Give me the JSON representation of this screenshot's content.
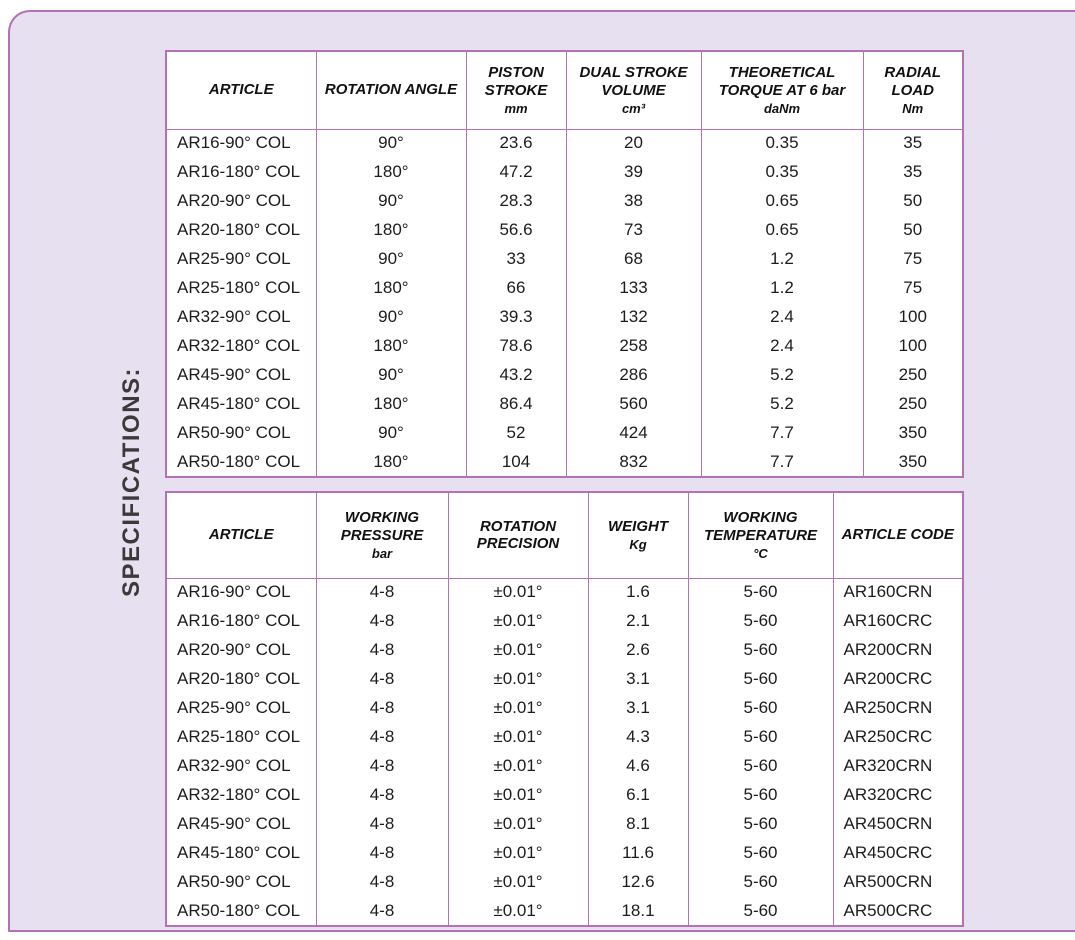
{
  "page": {
    "section_title": "SPECIFICATIONS:"
  },
  "colors": {
    "panel_bg": "#e7e0f0",
    "table_border": "#b472b4",
    "table_bg": "#ffffff",
    "header_text": "#111111",
    "cell_text": "#1c1c1c",
    "side_label_color": "#3a3a3a"
  },
  "tables": [
    {
      "columns": [
        {
          "title": "ARTICLE",
          "unit": ""
        },
        {
          "title": "ROTATION ANGLE",
          "unit": ""
        },
        {
          "title": "PISTON STROKE",
          "unit": "mm"
        },
        {
          "title": "DUAL STROKE VOLUME",
          "unit": "cm³"
        },
        {
          "title": "THEORETICAL TORQUE AT 6 bar",
          "unit": "daNm"
        },
        {
          "title": "RADIAL LOAD",
          "unit": "Nm"
        }
      ],
      "rows": [
        [
          "AR16-90° COL",
          "90°",
          "23.6",
          "20",
          "0.35",
          "35"
        ],
        [
          "AR16-180° COL",
          "180°",
          "47.2",
          "39",
          "0.35",
          "35"
        ],
        [
          "AR20-90° COL",
          "90°",
          "28.3",
          "38",
          "0.65",
          "50"
        ],
        [
          "AR20-180° COL",
          "180°",
          "56.6",
          "73",
          "0.65",
          "50"
        ],
        [
          "AR25-90° COL",
          "90°",
          "33",
          "68",
          "1.2",
          "75"
        ],
        [
          "AR25-180° COL",
          "180°",
          "66",
          "133",
          "1.2",
          "75"
        ],
        [
          "AR32-90° COL",
          "90°",
          "39.3",
          "132",
          "2.4",
          "100"
        ],
        [
          "AR32-180° COL",
          "180°",
          "78.6",
          "258",
          "2.4",
          "100"
        ],
        [
          "AR45-90° COL",
          "90°",
          "43.2",
          "286",
          "5.2",
          "250"
        ],
        [
          "AR45-180° COL",
          "180°",
          "86.4",
          "560",
          "5.2",
          "250"
        ],
        [
          "AR50-90° COL",
          "90°",
          "52",
          "424",
          "7.7",
          "350"
        ],
        [
          "AR50-180° COL",
          "180°",
          "104",
          "832",
          "7.7",
          "350"
        ]
      ]
    },
    {
      "columns": [
        {
          "title": "ARTICLE",
          "unit": ""
        },
        {
          "title": "WORKING PRESSURE",
          "unit": "bar"
        },
        {
          "title": "ROTATION PRECISION",
          "unit": ""
        },
        {
          "title": "WEIGHT",
          "unit": "Kg"
        },
        {
          "title": "WORKING TEMPERATURE",
          "unit": "°C"
        },
        {
          "title": "ARTICLE CODE",
          "unit": ""
        }
      ],
      "rows": [
        [
          "AR16-90° COL",
          "4-8",
          "±0.01°",
          "1.6",
          "5-60",
          "AR160CRN"
        ],
        [
          "AR16-180° COL",
          "4-8",
          "±0.01°",
          "2.1",
          "5-60",
          "AR160CRC"
        ],
        [
          "AR20-90° COL",
          "4-8",
          "±0.01°",
          "2.6",
          "5-60",
          "AR200CRN"
        ],
        [
          "AR20-180° COL",
          "4-8",
          "±0.01°",
          "3.1",
          "5-60",
          "AR200CRC"
        ],
        [
          "AR25-90° COL",
          "4-8",
          "±0.01°",
          "3.1",
          "5-60",
          "AR250CRN"
        ],
        [
          "AR25-180° COL",
          "4-8",
          "±0.01°",
          "4.3",
          "5-60",
          "AR250CRC"
        ],
        [
          "AR32-90° COL",
          "4-8",
          "±0.01°",
          "4.6",
          "5-60",
          "AR320CRN"
        ],
        [
          "AR32-180° COL",
          "4-8",
          "±0.01°",
          "6.1",
          "5-60",
          "AR320CRC"
        ],
        [
          "AR45-90° COL",
          "4-8",
          "±0.01°",
          "8.1",
          "5-60",
          "AR450CRN"
        ],
        [
          "AR45-180° COL",
          "4-8",
          "±0.01°",
          "11.6",
          "5-60",
          "AR450CRC"
        ],
        [
          "AR50-90° COL",
          "4-8",
          "±0.01°",
          "12.6",
          "5-60",
          "AR500CRN"
        ],
        [
          "AR50-180° COL",
          "4-8",
          "±0.01°",
          "18.1",
          "5-60",
          "AR500CRC"
        ]
      ]
    }
  ]
}
